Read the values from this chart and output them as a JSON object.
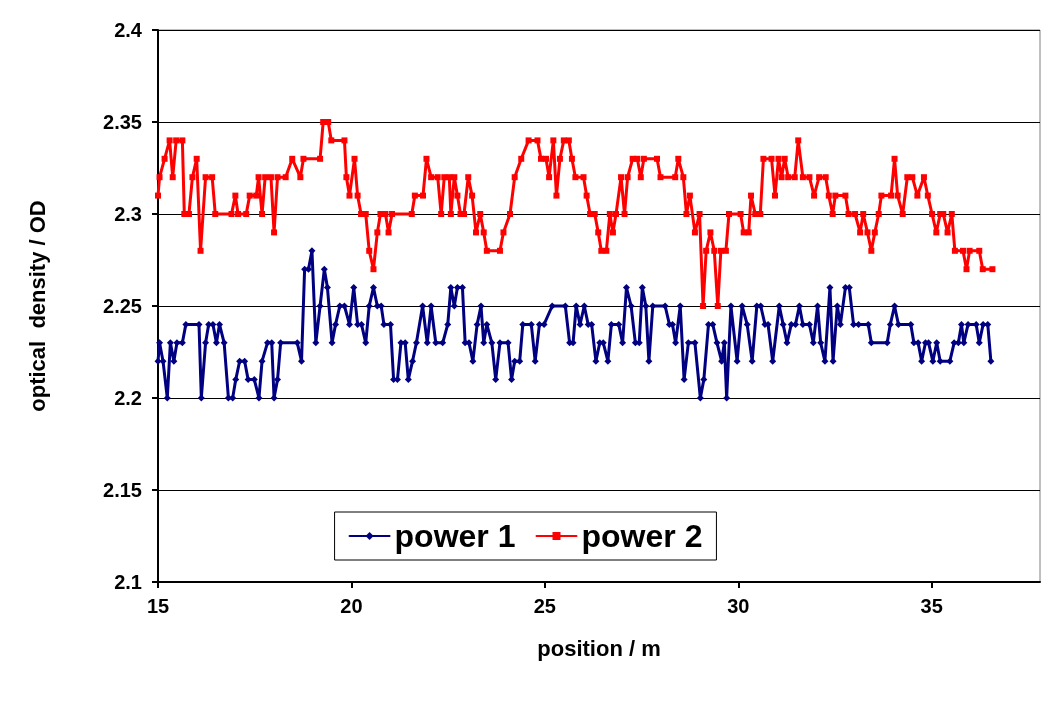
{
  "chart_data": {
    "type": "line",
    "xlabel": "position / m",
    "ylabel": "optical  density / OD",
    "xlim": [
      15,
      37.8
    ],
    "xticks": [
      15,
      20,
      25,
      30,
      35
    ],
    "ylim": [
      2.1,
      2.4
    ],
    "yticks": [
      2.1,
      2.15,
      2.2,
      2.25,
      2.3,
      2.35,
      2.4
    ],
    "grid": "y",
    "legend": "bottom",
    "line_style": "solid",
    "series": [
      {
        "name": "power 1",
        "color": "#000080",
        "marker": "diamond",
        "x": [
          15,
          15.04,
          15.13,
          15.24,
          15.32,
          15.41,
          15.49,
          15.63,
          15.72,
          16.06,
          16.12,
          16.23,
          16.31,
          16.42,
          16.51,
          16.59,
          16.71,
          16.82,
          16.93,
          17.01,
          17.11,
          17.24,
          17.33,
          17.49,
          17.61,
          17.69,
          17.83,
          17.94,
          18.0,
          18.09,
          18.17,
          18.6,
          18.71,
          18.79,
          18.89,
          18.98,
          19.08,
          19.19,
          19.3,
          19.38,
          19.5,
          19.59,
          19.7,
          19.82,
          19.95,
          20.06,
          20.16,
          20.26,
          20.37,
          20.46,
          20.57,
          20.67,
          20.77,
          20.84,
          21.01,
          21.09,
          21.19,
          21.28,
          21.39,
          21.47,
          21.58,
          21.68,
          21.84,
          21.96,
          22.06,
          22.18,
          22.36,
          22.49,
          22.57,
          22.66,
          22.74,
          22.87,
          22.94,
          23.04,
          23.14,
          23.25,
          23.35,
          23.42,
          23.5,
          23.63,
          23.73,
          23.84,
          24.05,
          24.14,
          24.22,
          24.35,
          24.43,
          24.65,
          24.75,
          24.86,
          24.98,
          25.19,
          25.53,
          25.64,
          25.73,
          25.81,
          25.91,
          26.02,
          26.12,
          26.21,
          26.32,
          26.42,
          26.51,
          26.63,
          26.72,
          26.91,
          27.01,
          27.11,
          27.23,
          27.34,
          27.44,
          27.52,
          27.61,
          27.69,
          27.79,
          28.11,
          28.22,
          28.3,
          28.38,
          28.5,
          28.6,
          28.71,
          28.88,
          29.02,
          29.11,
          29.23,
          29.34,
          29.45,
          29.57,
          29.64,
          29.7,
          29.81,
          29.97,
          30.1,
          30.23,
          30.36,
          30.48,
          30.58,
          30.69,
          30.77,
          30.89,
          31.06,
          31.16,
          31.26,
          31.37,
          31.48,
          31.58,
          31.67,
          31.84,
          31.94,
          32.05,
          32.13,
          32.24,
          32.37,
          32.45,
          32.56,
          32.64,
          32.77,
          32.87,
          32.98,
          33.11,
          33.36,
          33.44,
          33.85,
          33.93,
          34.04,
          34.14,
          34.46,
          34.54,
          34.65,
          34.74,
          34.84,
          34.92,
          35.03,
          35.13,
          35.22,
          35.47,
          35.58,
          35.69,
          35.77,
          35.83,
          35.94,
          36.15,
          36.23,
          36.33,
          36.45,
          36.53
        ],
        "values": [
          2.22,
          2.23,
          2.22,
          2.2,
          2.23,
          2.22,
          2.23,
          2.23,
          2.24,
          2.24,
          2.2,
          2.23,
          2.24,
          2.24,
          2.23,
          2.24,
          2.23,
          2.2,
          2.2,
          2.21,
          2.22,
          2.22,
          2.21,
          2.21,
          2.2,
          2.22,
          2.23,
          2.23,
          2.2,
          2.21,
          2.23,
          2.23,
          2.22,
          2.27,
          2.27,
          2.28,
          2.23,
          2.25,
          2.27,
          2.26,
          2.23,
          2.24,
          2.25,
          2.25,
          2.24,
          2.26,
          2.24,
          2.24,
          2.23,
          2.25,
          2.26,
          2.25,
          2.25,
          2.24,
          2.24,
          2.21,
          2.21,
          2.23,
          2.23,
          2.21,
          2.22,
          2.23,
          2.25,
          2.23,
          2.25,
          2.23,
          2.23,
          2.24,
          2.26,
          2.25,
          2.26,
          2.26,
          2.23,
          2.23,
          2.22,
          2.24,
          2.25,
          2.23,
          2.24,
          2.23,
          2.21,
          2.23,
          2.23,
          2.21,
          2.22,
          2.22,
          2.24,
          2.24,
          2.22,
          2.24,
          2.24,
          2.25,
          2.25,
          2.23,
          2.23,
          2.25,
          2.24,
          2.25,
          2.24,
          2.24,
          2.22,
          2.23,
          2.23,
          2.22,
          2.24,
          2.24,
          2.23,
          2.26,
          2.25,
          2.23,
          2.23,
          2.26,
          2.25,
          2.22,
          2.25,
          2.25,
          2.24,
          2.24,
          2.23,
          2.25,
          2.21,
          2.23,
          2.23,
          2.2,
          2.21,
          2.24,
          2.24,
          2.23,
          2.22,
          2.23,
          2.2,
          2.25,
          2.22,
          2.25,
          2.24,
          2.22,
          2.25,
          2.25,
          2.24,
          2.24,
          2.22,
          2.25,
          2.24,
          2.23,
          2.24,
          2.24,
          2.25,
          2.24,
          2.24,
          2.23,
          2.25,
          2.23,
          2.22,
          2.26,
          2.22,
          2.25,
          2.24,
          2.26,
          2.26,
          2.24,
          2.24,
          2.24,
          2.23,
          2.23,
          2.24,
          2.25,
          2.24,
          2.24,
          2.23,
          2.23,
          2.22,
          2.23,
          2.23,
          2.22,
          2.23,
          2.22,
          2.22,
          2.23,
          2.23,
          2.24,
          2.23,
          2.24,
          2.24,
          2.23,
          2.24,
          2.24,
          2.22
        ]
      },
      {
        "name": "power 2",
        "color": "#ff0000",
        "marker": "square",
        "x": [
          15,
          15.04,
          15.17,
          15.3,
          15.38,
          15.47,
          15.63,
          15.68,
          15.8,
          15.89,
          16.0,
          16.1,
          16.23,
          16.4,
          16.48,
          16.9,
          17.0,
          17.07,
          17.28,
          17.37,
          17.54,
          17.6,
          17.69,
          17.77,
          17.92,
          18.0,
          18.09,
          18.3,
          18.47,
          18.68,
          18.76,
          19.19,
          19.27,
          19.4,
          19.48,
          19.82,
          19.87,
          19.95,
          20.08,
          20.16,
          20.25,
          20.37,
          20.46,
          20.57,
          20.67,
          20.75,
          20.88,
          20.96,
          21.05,
          21.56,
          21.64,
          21.85,
          21.94,
          22.06,
          22.23,
          22.32,
          22.4,
          22.53,
          22.57,
          22.66,
          22.74,
          22.82,
          22.91,
          23.02,
          23.12,
          23.22,
          23.33,
          23.42,
          23.5,
          23.84,
          23.93,
          24.1,
          24.22,
          24.39,
          24.58,
          24.81,
          24.9,
          25.03,
          25.11,
          25.22,
          25.3,
          25.39,
          25.49,
          25.62,
          25.7,
          25.79,
          26.0,
          26.08,
          26.17,
          26.29,
          26.38,
          26.46,
          26.59,
          26.68,
          26.76,
          26.84,
          26.97,
          27.06,
          27.14,
          27.27,
          27.39,
          27.48,
          27.56,
          27.9,
          27.99,
          28.37,
          28.45,
          28.58,
          28.66,
          28.75,
          28.88,
          29.0,
          29.09,
          29.17,
          29.28,
          29.38,
          29.47,
          29.55,
          29.68,
          29.76,
          30.06,
          30.14,
          30.27,
          30.33,
          30.44,
          30.57,
          30.65,
          30.86,
          30.95,
          31.04,
          31.12,
          31.2,
          31.29,
          31.46,
          31.55,
          31.67,
          31.84,
          31.96,
          32.09,
          32.26,
          32.34,
          32.44,
          32.51,
          32.77,
          32.85,
          33.02,
          33.15,
          33.23,
          33.34,
          33.44,
          33.53,
          33.63,
          33.7,
          33.95,
          34.04,
          34.12,
          34.25,
          34.37,
          34.5,
          34.63,
          34.8,
          34.9,
          35.01,
          35.12,
          35.22,
          35.3,
          35.41,
          35.52,
          35.6,
          35.81,
          35.9,
          35.98,
          36.23,
          36.32,
          36.57
        ],
        "values": [
          2.31,
          2.32,
          2.33,
          2.34,
          2.32,
          2.34,
          2.34,
          2.3,
          2.3,
          2.32,
          2.33,
          2.28,
          2.32,
          2.32,
          2.3,
          2.3,
          2.31,
          2.3,
          2.3,
          2.31,
          2.31,
          2.32,
          2.3,
          2.32,
          2.32,
          2.29,
          2.32,
          2.32,
          2.33,
          2.32,
          2.33,
          2.33,
          2.35,
          2.35,
          2.34,
          2.34,
          2.32,
          2.31,
          2.33,
          2.31,
          2.3,
          2.3,
          2.28,
          2.27,
          2.29,
          2.3,
          2.3,
          2.29,
          2.3,
          2.3,
          2.31,
          2.31,
          2.33,
          2.32,
          2.32,
          2.3,
          2.32,
          2.32,
          2.3,
          2.32,
          2.31,
          2.3,
          2.3,
          2.32,
          2.31,
          2.29,
          2.3,
          2.29,
          2.28,
          2.28,
          2.29,
          2.3,
          2.32,
          2.33,
          2.34,
          2.34,
          2.33,
          2.33,
          2.32,
          2.34,
          2.31,
          2.33,
          2.34,
          2.34,
          2.33,
          2.32,
          2.32,
          2.31,
          2.3,
          2.3,
          2.29,
          2.28,
          2.28,
          2.3,
          2.29,
          2.3,
          2.32,
          2.3,
          2.32,
          2.33,
          2.33,
          2.32,
          2.33,
          2.33,
          2.32,
          2.32,
          2.33,
          2.32,
          2.3,
          2.31,
          2.29,
          2.3,
          2.25,
          2.28,
          2.29,
          2.28,
          2.25,
          2.28,
          2.28,
          2.3,
          2.3,
          2.29,
          2.29,
          2.31,
          2.3,
          2.3,
          2.33,
          2.33,
          2.31,
          2.33,
          2.32,
          2.33,
          2.32,
          2.32,
          2.34,
          2.32,
          2.32,
          2.31,
          2.32,
          2.32,
          2.31,
          2.3,
          2.31,
          2.31,
          2.3,
          2.3,
          2.29,
          2.3,
          2.29,
          2.28,
          2.29,
          2.3,
          2.31,
          2.31,
          2.33,
          2.31,
          2.3,
          2.32,
          2.32,
          2.31,
          2.32,
          2.31,
          2.3,
          2.29,
          2.3,
          2.3,
          2.29,
          2.3,
          2.28,
          2.28,
          2.27,
          2.28,
          2.28,
          2.27,
          2.27
        ]
      }
    ]
  }
}
